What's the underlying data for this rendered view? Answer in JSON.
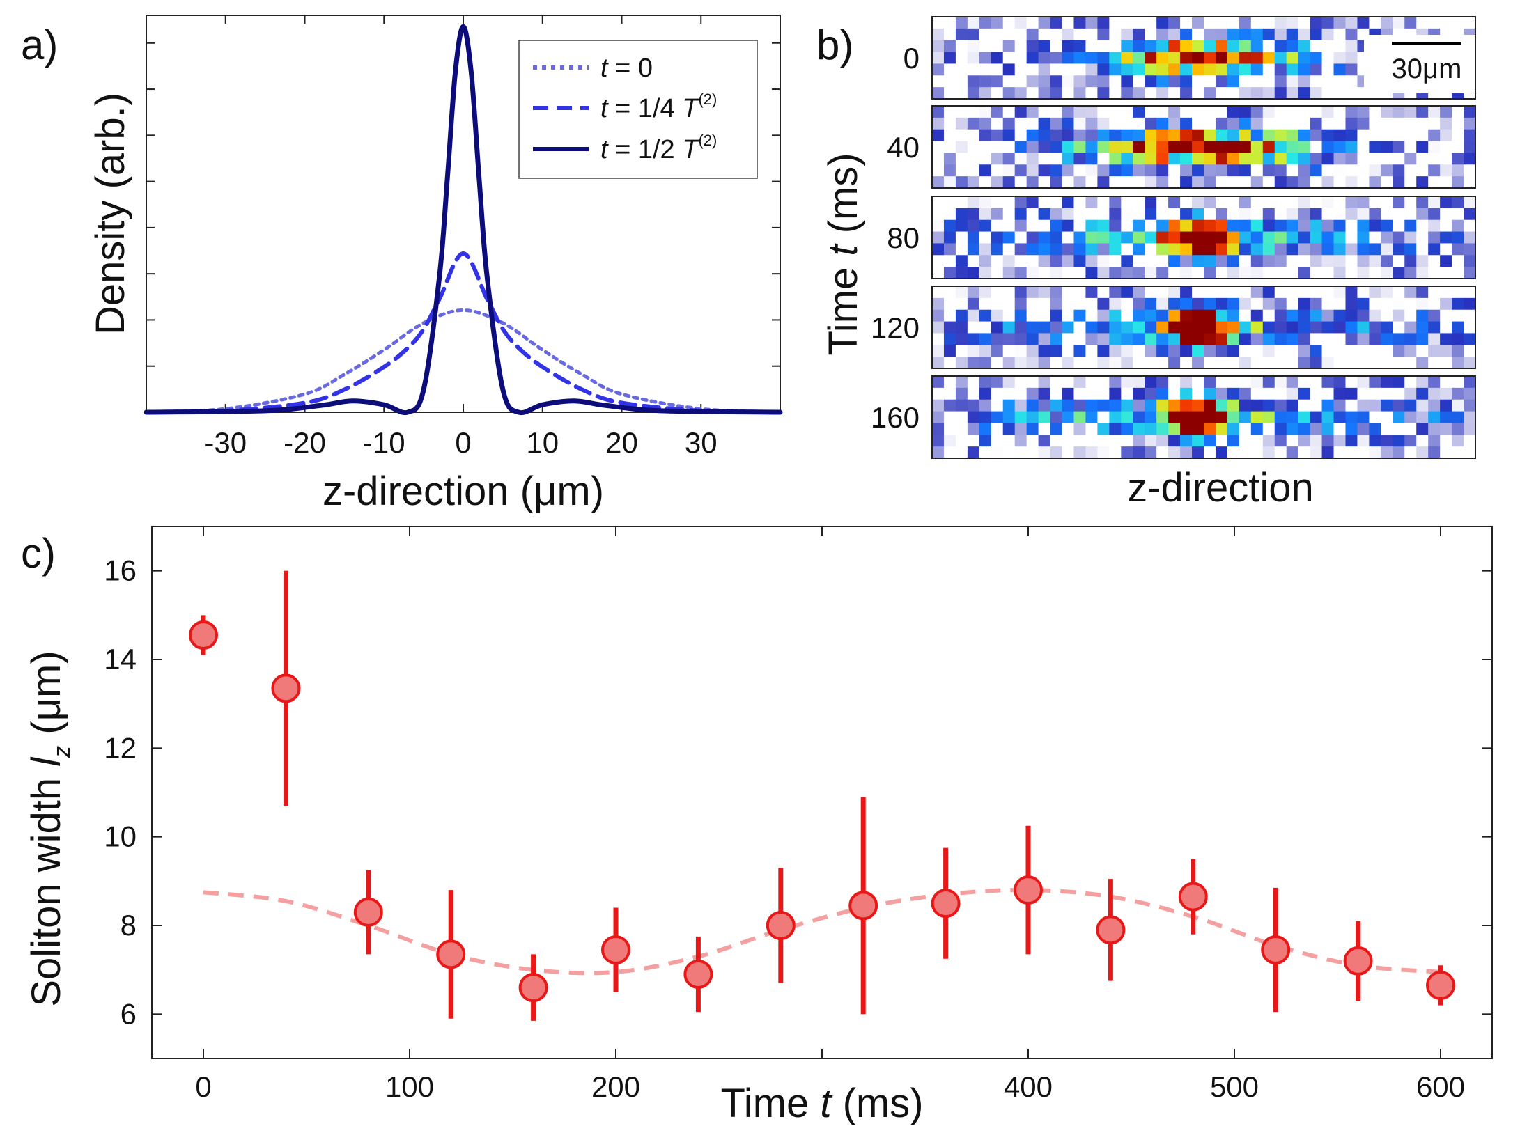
{
  "panel_a": {
    "label": "a)",
    "chart_data": {
      "type": "line",
      "title": "",
      "xlabel": "z-direction (μm)",
      "ylabel": "Density (arb.)",
      "xlim": [
        -40,
        40
      ],
      "ylim": [
        0,
        1.05
      ],
      "xticks": [
        -30,
        -20,
        -10,
        0,
        10,
        20,
        30
      ],
      "xtick_labels": [
        "-30",
        "-20",
        "-10",
        "0",
        "10",
        "20",
        "30"
      ],
      "yticks_unlabeled": 8,
      "legend_position": "top-right",
      "series": [
        {
          "name": "t = 0",
          "legend_parts": [
            "t",
            " = 0",
            ""
          ],
          "style": "dotted",
          "color": "#6a6ae0",
          "x": [
            -40,
            -30,
            -20,
            -15,
            -10,
            -5,
            0,
            5,
            10,
            15,
            20,
            30,
            40
          ],
          "y": [
            0.001,
            0.009,
            0.048,
            0.1,
            0.165,
            0.236,
            0.27,
            0.236,
            0.165,
            0.1,
            0.048,
            0.009,
            0.001
          ]
        },
        {
          "name": "t = 1/4 T(2)",
          "legend_parts": [
            "t",
            " = 1/4 ",
            "T"
          ],
          "legend_sup": "(2)",
          "style": "dashed",
          "color": "#3232e6",
          "x": [
            -40,
            -30,
            -20,
            -15,
            -10,
            -7,
            -5,
            -3,
            0,
            3,
            5,
            7,
            10,
            15,
            20,
            30,
            40
          ],
          "y": [
            0.0,
            0.004,
            0.025,
            0.06,
            0.12,
            0.17,
            0.22,
            0.3,
            0.42,
            0.3,
            0.22,
            0.17,
            0.12,
            0.06,
            0.025,
            0.004,
            0.0
          ]
        },
        {
          "name": "t = 1/2 T(2)",
          "legend_parts": [
            "t",
            " = 1/2 ",
            "T"
          ],
          "legend_sup": "(2)",
          "style": "solid",
          "color": "#0c0c7a",
          "x": [
            -40,
            -25,
            -18,
            -14,
            -10,
            -7,
            -5,
            -3,
            -2,
            -1,
            0,
            1,
            2,
            3,
            5,
            7,
            10,
            14,
            18,
            25,
            40
          ],
          "y": [
            0.0,
            0.004,
            0.018,
            0.03,
            0.02,
            0.0,
            0.06,
            0.36,
            0.62,
            0.9,
            1.02,
            0.9,
            0.62,
            0.36,
            0.06,
            0.0,
            0.02,
            0.03,
            0.018,
            0.004,
            0.0
          ]
        }
      ]
    }
  },
  "panel_b": {
    "label": "b)",
    "ylabel_parts": [
      "Time ",
      "t",
      " (ms)"
    ],
    "xlabel": "z-direction",
    "scalebar_label": "30μm",
    "frames": [
      {
        "time": "0",
        "cloud_center": 0.5,
        "core_width": 0.13,
        "wing_width": 0,
        "wing_level": 0
      },
      {
        "time": "40",
        "cloud_center": 0.49,
        "core_width": 0.17,
        "wing_width": 0.05,
        "wing_level": 0.05
      },
      {
        "time": "80",
        "cloud_center": 0.49,
        "core_width": 0.035,
        "wing_width": 0.26,
        "wing_level": 0.55
      },
      {
        "time": "120",
        "cloud_center": 0.49,
        "core_width": 0.04,
        "wing_width": 0.32,
        "wing_level": 0.45
      },
      {
        "time": "160",
        "cloud_center": 0.49,
        "core_width": 0.04,
        "wing_width": 0.38,
        "wing_level": 0.45
      }
    ]
  },
  "panel_c": {
    "label": "c)",
    "chart_data": {
      "type": "scatter",
      "title": "",
      "xlabel_parts": [
        "Time ",
        "t",
        " (ms)"
      ],
      "ylabel_parts": [
        "Soliton width ",
        "l",
        "z",
        " (μm)"
      ],
      "xlim": [
        -25,
        625
      ],
      "ylim": [
        5.0,
        17.0
      ],
      "xticks": [
        0,
        100,
        200,
        300,
        400,
        500,
        600
      ],
      "xtick_labels": [
        "0",
        "100",
        "200",
        "",
        "400",
        "500",
        "600"
      ],
      "yticks": [
        6,
        8,
        10,
        12,
        14,
        16
      ],
      "ytick_labels": [
        "6",
        "8",
        "10",
        "12",
        "14",
        "16"
      ],
      "marker_color": "#f07a7a",
      "edge_color": "#e81818",
      "fit_color": "#f4a0a0",
      "points": {
        "x": [
          0,
          40,
          80,
          120,
          160,
          200,
          240,
          280,
          320,
          360,
          400,
          440,
          480,
          520,
          560,
          600
        ],
        "y": [
          14.55,
          13.35,
          8.3,
          7.35,
          6.6,
          7.45,
          6.9,
          8.0,
          8.45,
          8.5,
          8.8,
          7.9,
          8.65,
          7.45,
          7.2,
          6.65
        ],
        "err": [
          0.45,
          2.65,
          0.95,
          1.45,
          0.75,
          0.95,
          0.85,
          1.3,
          2.45,
          1.25,
          1.45,
          1.15,
          0.85,
          1.4,
          0.9,
          0.45
        ]
      },
      "fit": {
        "style": "dashed",
        "x": [
          0,
          40,
          80,
          120,
          160,
          200,
          240,
          280,
          320,
          360,
          400,
          440,
          480,
          520,
          560,
          600
        ],
        "y": [
          8.75,
          8.55,
          8.0,
          7.35,
          7.0,
          6.95,
          7.3,
          7.9,
          8.4,
          8.7,
          8.8,
          8.65,
          8.2,
          7.55,
          7.1,
          6.95
        ]
      }
    }
  }
}
